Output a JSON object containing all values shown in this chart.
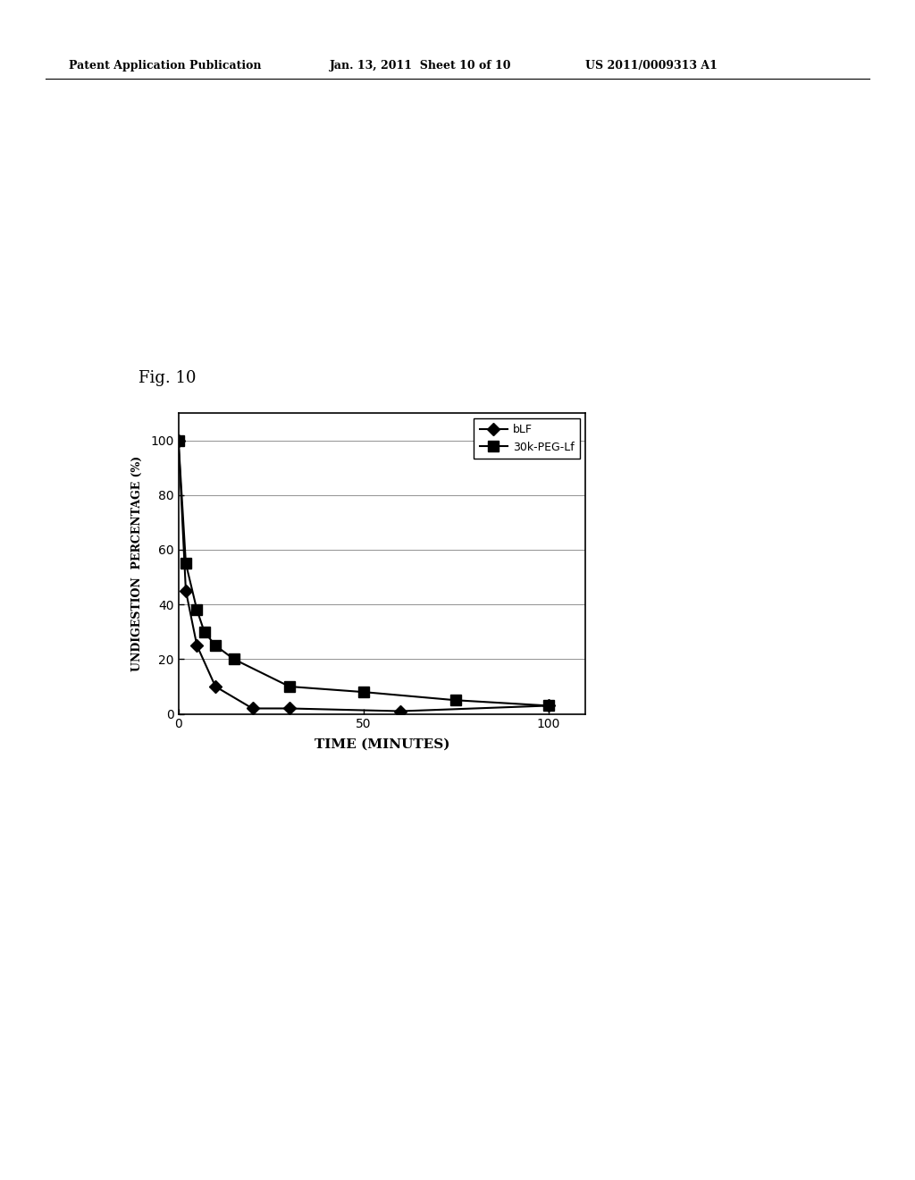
{
  "blf_x": [
    0,
    2,
    5,
    10,
    20,
    30,
    60,
    100
  ],
  "blf_y": [
    100,
    45,
    25,
    10,
    2,
    2,
    1,
    3
  ],
  "peg_x": [
    0,
    2,
    5,
    7,
    10,
    15,
    30,
    50,
    75,
    100
  ],
  "peg_y": [
    100,
    55,
    38,
    30,
    25,
    20,
    10,
    8,
    5,
    3
  ],
  "xlabel": "TIME (MINUTES)",
  "ylabel": "UNDIGESTION  PERCENTAGE (%)",
  "xlim": [
    0,
    110
  ],
  "ylim": [
    0,
    110
  ],
  "xticks": [
    0,
    50,
    100
  ],
  "yticks": [
    0,
    20,
    40,
    60,
    80,
    100
  ],
  "legend_blf": "bLF",
  "legend_peg": "30k-PEG-Lf",
  "line_color": "#000000",
  "marker_color": "#000000",
  "fig_label": "Fig. 10",
  "header_left": "Patent Application Publication",
  "header_mid": "Jan. 13, 2011  Sheet 10 of 10",
  "header_right": "US 2011/0009313 A1",
  "background_color": "#ffffff",
  "plot_bg_color": "#ffffff"
}
